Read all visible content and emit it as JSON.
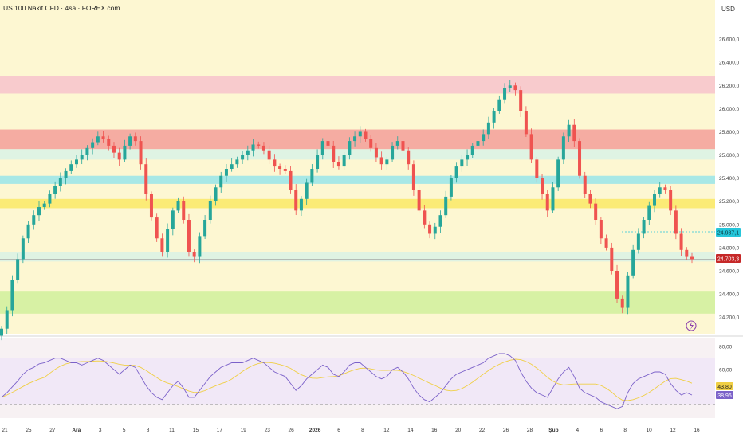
{
  "header": {
    "title": "US 100 Nakit CFD · 4sa · FOREX.com",
    "currency": "USD"
  },
  "colors": {
    "background": "#fdf7d2",
    "up_candle": "#26a69a",
    "down_candle": "#ef5350",
    "zone_pink": "#f7c5cc",
    "zone_red": "#f4a39c",
    "zone_cyan": "#9ee6e8",
    "zone_yellow": "#fbe96b",
    "zone_green": "#d3ef9f",
    "zone_pale": "#dcf2e4",
    "rsi_line": "#7b61c9",
    "rsi_ma": "#f0cf45",
    "current_price_label": "#c62828",
    "prev_price_label": "#26c6da"
  },
  "chart_data": [
    {
      "type": "candlestick",
      "x_ticks": [
        "21",
        "25",
        "27",
        "Ara",
        "3",
        "5",
        "8",
        "11",
        "15",
        "17",
        "19",
        "23",
        "26",
        "2026",
        "6",
        "8",
        "12",
        "14",
        "16",
        "20",
        "22",
        "26",
        "28",
        "Şub",
        "4",
        "6",
        "8",
        "10",
        "12",
        "16"
      ],
      "y_ticks": [
        "26.600,0",
        "26.400,0",
        "26.200,0",
        "26.000,0",
        "25.800,0",
        "25.600,0",
        "25.400,0",
        "25.200,0",
        "25.000,0",
        "24.800,0",
        "24.600,0",
        "24.400,0",
        "24.200,0"
      ],
      "ylim": [
        24050,
        26800
      ],
      "zones": [
        {
          "color": "pink",
          "from": 26130,
          "to": 26280
        },
        {
          "color": "red",
          "from": 25650,
          "to": 25820
        },
        {
          "color": "pale-green",
          "from": 25560,
          "to": 25650
        },
        {
          "color": "cyan",
          "from": 25350,
          "to": 25420
        },
        {
          "color": "yellow",
          "from": 25140,
          "to": 25220
        },
        {
          "color": "pale-green",
          "from": 24680,
          "to": 24760
        },
        {
          "color": "green",
          "from": 24230,
          "to": 24420
        }
      ],
      "price_labels": {
        "previous": "24.937,1",
        "current": "24.703,3"
      },
      "series": [
        {
          "values": [
            24100,
            24260,
            24520,
            24700,
            24880,
            25000,
            25080,
            25150,
            25180,
            25260,
            25330,
            25400,
            25460,
            25520,
            25560,
            25600,
            25660,
            25710,
            25760,
            25740,
            25680,
            25620,
            25560,
            25680,
            25760,
            25720,
            25520,
            25260,
            25060,
            24880,
            24760,
            24960,
            25120,
            25200,
            25040,
            24760,
            24720,
            24900,
            25040,
            25200,
            25320,
            25420,
            25480,
            25520,
            25560,
            25600,
            25640,
            25690,
            25680,
            25640,
            25560,
            25500,
            25480,
            25460,
            25300,
            25120,
            25220,
            25360,
            25480,
            25600,
            25720,
            25680,
            25540,
            25500,
            25600,
            25720,
            25760,
            25800,
            25740,
            25660,
            25580,
            25520,
            25560,
            25680,
            25720,
            25640,
            25520,
            25300,
            25120,
            25000,
            24920,
            24980,
            25080,
            25240,
            25400,
            25500,
            25560,
            25600,
            25680,
            25720,
            25780,
            25880,
            25980,
            26080,
            26180,
            26200,
            26160,
            25980,
            25780,
            25560,
            25400,
            25260,
            25120,
            25320,
            25560,
            25760,
            25860,
            25720,
            25420,
            25260,
            25180,
            25040,
            24880,
            24800,
            24600,
            24360,
            24280,
            24560,
            24780,
            24920,
            25040,
            25160,
            25260,
            25320,
            25300,
            25120,
            24920,
            24780,
            24720,
            24700
          ]
        },
        {
          "name": "RSI",
          "values": [
            36,
            40,
            45,
            50,
            56,
            60,
            62,
            65,
            66,
            68,
            70,
            70,
            68,
            66,
            66,
            64,
            66,
            68,
            70,
            68,
            64,
            60,
            56,
            60,
            64,
            62,
            54,
            46,
            40,
            36,
            34,
            40,
            46,
            50,
            44,
            36,
            36,
            42,
            48,
            54,
            58,
            62,
            64,
            66,
            66,
            66,
            68,
            70,
            68,
            66,
            62,
            58,
            56,
            54,
            48,
            42,
            46,
            52,
            56,
            60,
            64,
            62,
            56,
            54,
            58,
            64,
            66,
            66,
            62,
            58,
            54,
            52,
            54,
            60,
            62,
            58,
            52,
            44,
            38,
            34,
            32,
            36,
            40,
            46,
            52,
            56,
            58,
            60,
            62,
            64,
            66,
            70,
            72,
            74,
            74,
            72,
            68,
            58,
            50,
            44,
            40,
            38,
            36,
            44,
            52,
            58,
            62,
            54,
            44,
            40,
            38,
            36,
            32,
            30,
            28,
            26,
            28,
            40,
            48,
            52,
            54,
            56,
            58,
            58,
            56,
            48,
            42,
            38,
            40,
            38
          ],
          "ylim": [
            20,
            85
          ],
          "y_ticks": [
            "80,00",
            "60,00"
          ],
          "labels": {
            "ma": "43,80",
            "rsi": "38,96"
          }
        }
      ]
    }
  ]
}
